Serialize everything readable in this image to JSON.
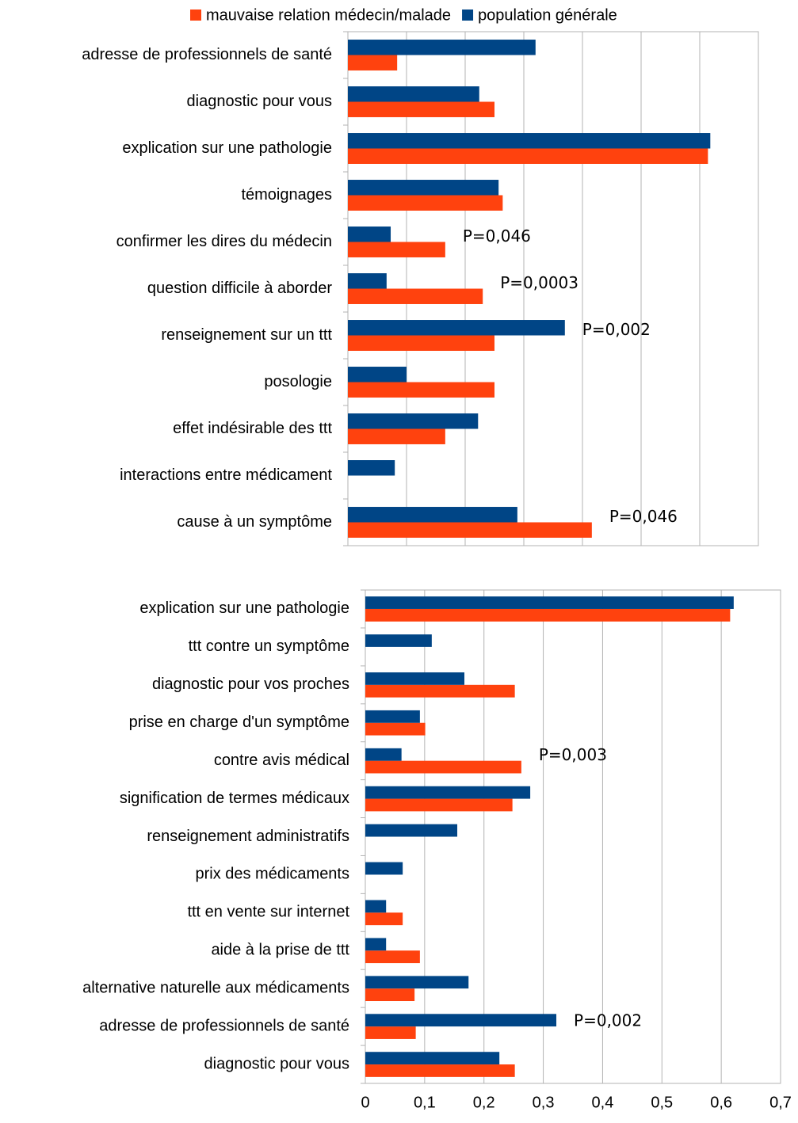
{
  "chart_data": [
    {
      "type": "bar",
      "orientation": "horizontal",
      "categories": [
        "adresse de professionnels de santé",
        "diagnostic pour vous",
        "explication sur une pathologie",
        "témoignages",
        "confirmer les dires du médecin",
        "question difficile à aborder",
        "renseignement sur un ttt",
        "posologie",
        "effet indésirable des ttt",
        "interactions entre médicament",
        "cause à un symptôme"
      ],
      "series": [
        {
          "name": "mauvaise relation médecin/malade",
          "color": "#ff420e",
          "values": [
            0.084,
            0.25,
            0.614,
            0.264,
            0.166,
            0.23,
            0.25,
            0.25,
            0.166,
            0,
            0.416
          ]
        },
        {
          "name": "population générale",
          "color": "#004586",
          "values": [
            0.32,
            0.224,
            0.618,
            0.257,
            0.073,
            0.066,
            0.37,
            0.1,
            0.222,
            0.08,
            0.289
          ]
        }
      ],
      "xlim": [
        0,
        0.7
      ],
      "xticks": [
        0,
        0.1,
        0.2,
        0.3,
        0.4,
        0.5,
        0.6,
        0.7
      ],
      "grid": true,
      "legend": "top",
      "annotations": [
        {
          "text": "P=0,046",
          "category": "confirmer les dires du médecin"
        },
        {
          "text": "P=0,0003",
          "category": "question difficile à aborder"
        },
        {
          "text": "P=0,002",
          "category": "renseignement sur un ttt"
        },
        {
          "text": "P=0,046",
          "category": "cause à un symptôme"
        }
      ]
    },
    {
      "type": "bar",
      "orientation": "horizontal",
      "categories": [
        "explication sur une pathologie",
        "ttt contre un symptôme",
        "diagnostic pour vos proches",
        "prise en charge d'un symptôme",
        "contre avis médical",
        "signification de termes médicaux",
        "renseignement administratifs",
        "prix des médicaments",
        "ttt en vente sur internet",
        "aide à la prise de ttt",
        "alternative naturelle aux médicaments",
        "adresse de professionnels de santé",
        "diagnostic pour vous"
      ],
      "series": [
        {
          "name": "mauvaise relation médecin/malade",
          "color": "#ff420e",
          "values": [
            0.615,
            0,
            0.252,
            0.101,
            0.263,
            0.248,
            0,
            0,
            0.063,
            0.092,
            0.083,
            0.085,
            0.252
          ]
        },
        {
          "name": "population générale",
          "color": "#004586",
          "values": [
            0.621,
            0.112,
            0.167,
            0.092,
            0.061,
            0.278,
            0.155,
            0.063,
            0.035,
            0.035,
            0.174,
            0.322,
            0.226
          ]
        }
      ],
      "xlim": [
        0,
        0.7
      ],
      "xticks": [
        0,
        {
          "value": 0.1,
          "label": "0,1"
        },
        {
          "value": 0.2,
          "label": "0,2"
        },
        {
          "value": 0.3,
          "label": "0,3"
        },
        {
          "value": 0.4,
          "label": "0,4"
        },
        {
          "value": 0.5,
          "label": "0,5"
        },
        {
          "value": 0.6,
          "label": "0,6"
        },
        {
          "value": 0.7,
          "label": "0,7"
        }
      ],
      "grid": true,
      "annotations": [
        {
          "text": "P=0,003",
          "category": "contre avis médical"
        },
        {
          "text": "P=0,002",
          "category": "adresse de professionnels de santé"
        }
      ]
    }
  ]
}
